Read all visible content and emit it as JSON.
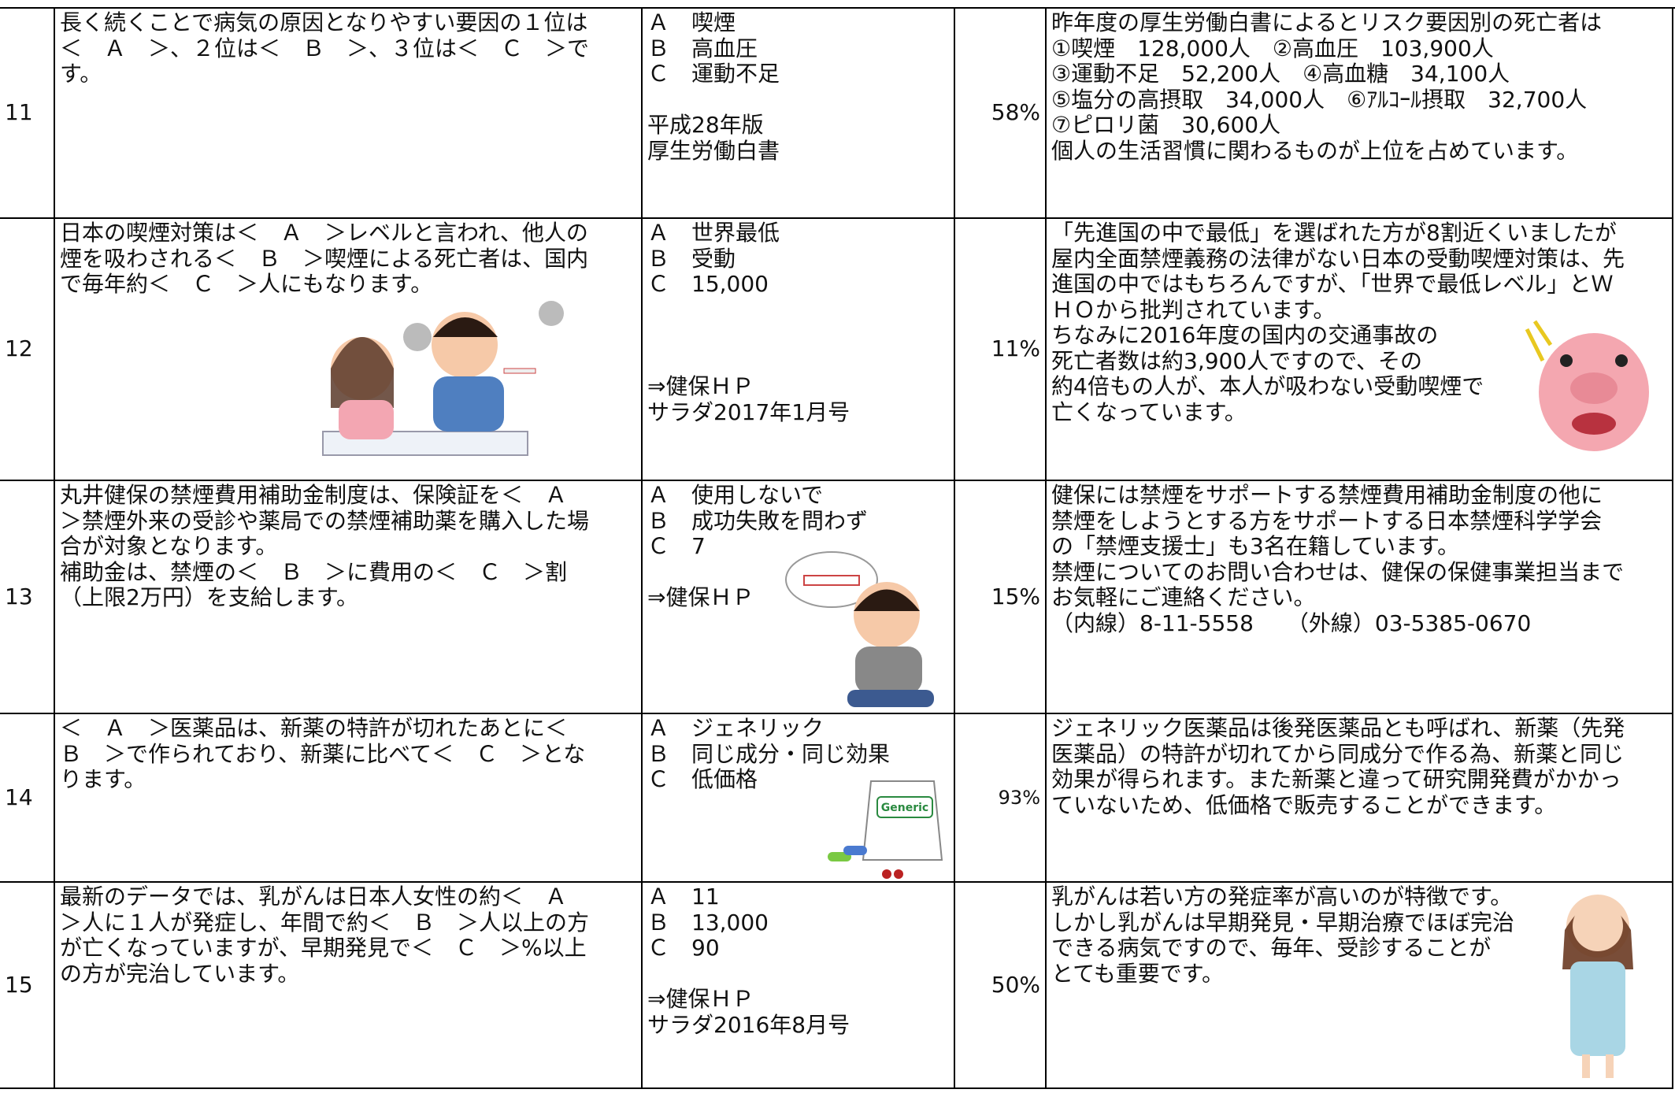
{
  "table": {
    "rows": [
      {
        "number": "11",
        "question": [
          "長く続くことで病気の原因となりやすい要因の１位は",
          "＜　Ａ　＞、２位は＜　Ｂ　＞、３位は＜　Ｃ　＞で",
          "す。"
        ],
        "answers": [
          "Ａ　喫煙",
          "Ｂ　高血圧",
          "Ｃ　運動不足"
        ],
        "source": [
          "平成28年版",
          "厚生労働白書"
        ],
        "rate": "58%",
        "explanation": [
          "昨年度の厚生労働白書によるとリスク要因別の死亡者は",
          "①喫煙　128,000人　②高血圧　103,900人",
          "③運動不足　52,200人　④高血糖　34,100人",
          "⑤塩分の高摂取　34,000人　⑥ｱﾙｺｰﾙ摂取　32,700人",
          "⑦ピロリ菌　30,600人",
          "個人の生活習慣に関わるものが上位を占めています。"
        ]
      },
      {
        "number": "12",
        "question": [
          "日本の喫煙対策は＜　Ａ　＞レベルと言われ、他人の",
          "煙を吸わされる＜　Ｂ　＞喫煙による死亡者は、国内",
          "で毎年約＜　Ｃ　＞人にもなります。"
        ],
        "answers": [
          "Ａ　世界最低",
          "Ｂ　受動",
          "Ｃ　15,000"
        ],
        "source": [
          "⇒健保ＨＰ",
          "サラダ2017年1月号"
        ],
        "rate": "11%",
        "explanation": [
          "「先進国の中で最低」を選ばれた方が8割近くいましたが",
          "屋内全面禁煙義務の法律がない日本の受動喫煙対策は、先",
          "進国の中ではもちろんですが、「世界で最低レベル」とＷ",
          "ＨＯから批判されています。",
          "ちなみに2016年度の国内の交通事故の",
          "死亡者数は約3,900人ですので、その",
          "約4倍もの人が、本人が吸わない受動喫煙で",
          "亡くなっています。"
        ]
      },
      {
        "number": "13",
        "question": [
          "丸井健保の禁煙費用補助金制度は、保険証を＜　Ａ",
          "＞禁煙外来の受診や薬局での禁煙補助薬を購入した場",
          "合が対象となります。",
          "補助金は、禁煙の＜　Ｂ　＞に費用の＜　Ｃ　＞割",
          "（上限2万円）を支給します。"
        ],
        "answers": [
          "Ａ　使用しないで",
          "Ｂ　成功失敗を問わず",
          "Ｃ　7"
        ],
        "source": [
          "⇒健保ＨＰ"
        ],
        "rate": "15%",
        "explanation": [
          "健保には禁煙をサポートする禁煙費用補助金制度の他に",
          "禁煙をしようとする方をサポートする日本禁煙科学学会",
          "の「禁煙支援士」も3名在籍しています。",
          "禁煙についてのお問い合わせは、健保の保健事業担当まで",
          "お気軽にご連絡ください。",
          "（内線）8-11-5558　　（外線）03-5385-0670"
        ]
      },
      {
        "number": "14",
        "question": [
          "＜　Ａ　＞医薬品は、新薬の特許が切れたあとに＜",
          "Ｂ　＞で作られており、新薬に比べて＜　Ｃ　＞とな",
          "ります。"
        ],
        "answers": [
          "Ａ　ジェネリック",
          "Ｂ　同じ成分・同じ効果",
          "Ｃ　低価格"
        ],
        "rate": "93%",
        "explanation": [
          "ジェネリック医薬品は後発医薬品とも呼ばれ、新薬（先発",
          "医薬品）の特許が切れてから同成分で作る為、新薬と同じ",
          "効果が得られます。また新薬と違って研究開発費がかかっ",
          "ていないため、低価格で販売することができます。"
        ],
        "illustration_label": "Generic"
      },
      {
        "number": "15",
        "question": [
          "最新のデータでは、乳がんは日本人女性の約＜　Ａ",
          "＞人に１人が発症し、年間で約＜　Ｂ　＞人以上の方",
          "が亡くなっていますが、早期発見で＜　Ｃ　＞%以上",
          "の方が完治しています。"
        ],
        "answers": [
          "Ａ　11",
          "Ｂ　13,000",
          "Ｃ　90"
        ],
        "source": [
          "⇒健保ＨＰ",
          "サラダ2016年8月号"
        ],
        "rate": "50%",
        "explanation": [
          "乳がんは若い方の発症率が高いのが特徴です。",
          "しかし乳がんは早期発見・早期治療でほぼ完治",
          "できる病気ですので、毎年、受診することが",
          "とても重要です。"
        ]
      }
    ]
  }
}
